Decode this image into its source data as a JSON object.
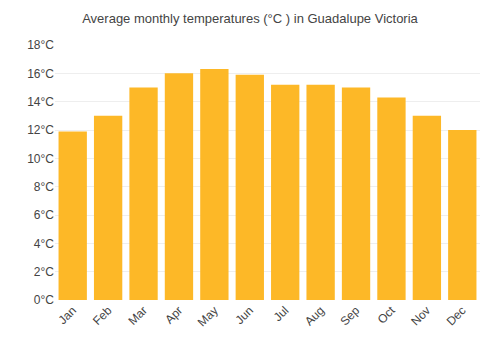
{
  "chart_data": {
    "type": "bar",
    "title": "Average monthly temperatures (°C ) in Guadalupe Victoria",
    "categories": [
      "Jan",
      "Feb",
      "Mar",
      "Apr",
      "May",
      "Jun",
      "Jul",
      "Aug",
      "Sep",
      "Oct",
      "Nov",
      "Dec"
    ],
    "values": [
      11.9,
      13.0,
      15.0,
      16.0,
      16.3,
      15.9,
      15.2,
      15.2,
      15.0,
      14.3,
      13.0,
      12.0
    ],
    "color": "#FDB827",
    "ylim": [
      0,
      18
    ],
    "yticks": [
      {
        "value": 0,
        "label": "0°C"
      },
      {
        "value": 2,
        "label": "2°C"
      },
      {
        "value": 4,
        "label": "4°C"
      },
      {
        "value": 6,
        "label": "6°C"
      },
      {
        "value": 8,
        "label": "8°C"
      },
      {
        "value": 10,
        "label": "10°C"
      },
      {
        "value": 12,
        "label": "12°C"
      },
      {
        "value": 14,
        "label": "14°C"
      },
      {
        "value": 16,
        "label": "16°C"
      },
      {
        "value": 18,
        "label": "18°C"
      }
    ],
    "grid": true
  }
}
